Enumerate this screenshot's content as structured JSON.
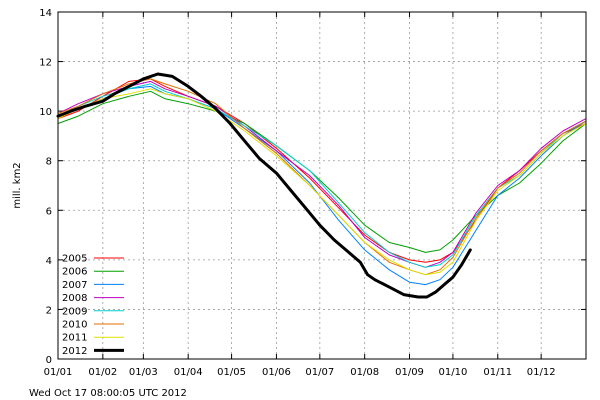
{
  "chart_data": {
    "type": "line",
    "xlabel": "",
    "ylabel": "mill. km2",
    "ylim": [
      0,
      14
    ],
    "xlim": [
      1,
      366
    ],
    "grid": true,
    "legend_position": "bottom-left",
    "footer": "Wed Oct 17 08:00:05 UTC 2012",
    "x_ticks": [
      {
        "label": "01/01",
        "day": 1
      },
      {
        "label": "01/02",
        "day": 32
      },
      {
        "label": "01/03",
        "day": 60
      },
      {
        "label": "01/04",
        "day": 91
      },
      {
        "label": "01/05",
        "day": 121
      },
      {
        "label": "01/06",
        "day": 152
      },
      {
        "label": "01/07",
        "day": 182
      },
      {
        "label": "01/08",
        "day": 213
      },
      {
        "label": "01/09",
        "day": 244
      },
      {
        "label": "01/10",
        "day": 274
      },
      {
        "label": "01/11",
        "day": 305
      },
      {
        "label": "01/12",
        "day": 335
      }
    ],
    "y_ticks": [
      0,
      2,
      4,
      6,
      8,
      10,
      12,
      14
    ],
    "series": [
      {
        "name": "2005",
        "color": "#ff0000",
        "width": 1,
        "points": [
          [
            1,
            9.7
          ],
          [
            15,
            10.0
          ],
          [
            32,
            10.6
          ],
          [
            50,
            11.2
          ],
          [
            65,
            11.3
          ],
          [
            75,
            11.0
          ],
          [
            91,
            10.6
          ],
          [
            110,
            10.2
          ],
          [
            130,
            9.5
          ],
          [
            152,
            8.5
          ],
          [
            175,
            7.3
          ],
          [
            195,
            6.1
          ],
          [
            213,
            5.0
          ],
          [
            230,
            4.3
          ],
          [
            244,
            4.0
          ],
          [
            255,
            3.9
          ],
          [
            265,
            4.0
          ],
          [
            274,
            4.3
          ],
          [
            290,
            5.6
          ],
          [
            305,
            6.9
          ],
          [
            320,
            7.6
          ],
          [
            335,
            8.4
          ],
          [
            350,
            9.1
          ],
          [
            366,
            9.5
          ]
        ]
      },
      {
        "name": "2006",
        "color": "#00a000",
        "width": 1,
        "points": [
          [
            1,
            9.5
          ],
          [
            15,
            9.8
          ],
          [
            32,
            10.3
          ],
          [
            50,
            10.6
          ],
          [
            65,
            10.8
          ],
          [
            75,
            10.5
          ],
          [
            91,
            10.3
          ],
          [
            110,
            10.0
          ],
          [
            130,
            9.5
          ],
          [
            152,
            8.6
          ],
          [
            175,
            7.6
          ],
          [
            195,
            6.5
          ],
          [
            213,
            5.4
          ],
          [
            230,
            4.7
          ],
          [
            244,
            4.5
          ],
          [
            255,
            4.3
          ],
          [
            265,
            4.4
          ],
          [
            274,
            4.8
          ],
          [
            290,
            5.8
          ],
          [
            305,
            6.6
          ],
          [
            320,
            7.1
          ],
          [
            335,
            7.9
          ],
          [
            350,
            8.8
          ],
          [
            366,
            9.5
          ]
        ]
      },
      {
        "name": "2007",
        "color": "#0080ff",
        "width": 1,
        "points": [
          [
            1,
            9.8
          ],
          [
            15,
            10.1
          ],
          [
            32,
            10.5
          ],
          [
            50,
            10.9
          ],
          [
            65,
            11.0
          ],
          [
            75,
            10.7
          ],
          [
            91,
            10.5
          ],
          [
            110,
            10.1
          ],
          [
            130,
            9.3
          ],
          [
            152,
            8.4
          ],
          [
            175,
            7.1
          ],
          [
            195,
            5.6
          ],
          [
            213,
            4.4
          ],
          [
            230,
            3.6
          ],
          [
            244,
            3.1
          ],
          [
            255,
            3.0
          ],
          [
            265,
            3.2
          ],
          [
            274,
            3.7
          ],
          [
            290,
            5.2
          ],
          [
            305,
            6.6
          ],
          [
            320,
            7.3
          ],
          [
            335,
            8.2
          ],
          [
            350,
            9.0
          ],
          [
            366,
            9.6
          ]
        ]
      },
      {
        "name": "2008",
        "color": "#c000c0",
        "width": 1,
        "points": [
          [
            1,
            9.9
          ],
          [
            15,
            10.3
          ],
          [
            32,
            10.7
          ],
          [
            50,
            11.0
          ],
          [
            65,
            11.2
          ],
          [
            75,
            10.9
          ],
          [
            91,
            10.6
          ],
          [
            110,
            10.2
          ],
          [
            130,
            9.4
          ],
          [
            152,
            8.4
          ],
          [
            175,
            7.4
          ],
          [
            195,
            6.2
          ],
          [
            213,
            4.9
          ],
          [
            230,
            4.2
          ],
          [
            244,
            3.9
          ],
          [
            255,
            3.7
          ],
          [
            265,
            3.9
          ],
          [
            274,
            4.3
          ],
          [
            290,
            5.9
          ],
          [
            305,
            7.0
          ],
          [
            320,
            7.6
          ],
          [
            335,
            8.5
          ],
          [
            350,
            9.2
          ],
          [
            366,
            9.7
          ]
        ]
      },
      {
        "name": "2009",
        "color": "#00d0d0",
        "width": 1,
        "points": [
          [
            1,
            9.8
          ],
          [
            15,
            10.2
          ],
          [
            32,
            10.6
          ],
          [
            50,
            10.9
          ],
          [
            65,
            11.1
          ],
          [
            75,
            10.8
          ],
          [
            91,
            10.5
          ],
          [
            110,
            10.1
          ],
          [
            130,
            9.4
          ],
          [
            152,
            8.6
          ],
          [
            175,
            7.6
          ],
          [
            195,
            6.3
          ],
          [
            213,
            5.1
          ],
          [
            230,
            4.3
          ],
          [
            244,
            3.9
          ],
          [
            255,
            3.7
          ],
          [
            265,
            3.8
          ],
          [
            274,
            4.2
          ],
          [
            290,
            5.8
          ],
          [
            305,
            6.9
          ],
          [
            320,
            7.4
          ],
          [
            335,
            8.3
          ],
          [
            350,
            9.1
          ],
          [
            366,
            9.6
          ]
        ]
      },
      {
        "name": "2010",
        "color": "#e07000",
        "width": 1,
        "points": [
          [
            1,
            9.9
          ],
          [
            15,
            10.2
          ],
          [
            32,
            10.7
          ],
          [
            50,
            11.1
          ],
          [
            65,
            11.3
          ],
          [
            75,
            11.1
          ],
          [
            91,
            10.8
          ],
          [
            110,
            10.3
          ],
          [
            130,
            9.3
          ],
          [
            152,
            8.3
          ],
          [
            175,
            7.0
          ],
          [
            195,
            5.8
          ],
          [
            213,
            4.7
          ],
          [
            230,
            3.9
          ],
          [
            244,
            3.6
          ],
          [
            255,
            3.4
          ],
          [
            265,
            3.6
          ],
          [
            274,
            4.1
          ],
          [
            290,
            5.7
          ],
          [
            305,
            6.9
          ],
          [
            320,
            7.5
          ],
          [
            335,
            8.4
          ],
          [
            350,
            9.1
          ],
          [
            366,
            9.6
          ]
        ]
      },
      {
        "name": "2011",
        "color": "#e0e000",
        "width": 1,
        "points": [
          [
            1,
            9.7
          ],
          [
            15,
            10.1
          ],
          [
            32,
            10.5
          ],
          [
            50,
            10.7
          ],
          [
            65,
            10.9
          ],
          [
            75,
            10.7
          ],
          [
            91,
            10.5
          ],
          [
            110,
            10.0
          ],
          [
            130,
            9.2
          ],
          [
            152,
            8.2
          ],
          [
            175,
            7.0
          ],
          [
            195,
            5.8
          ],
          [
            213,
            4.7
          ],
          [
            230,
            4.0
          ],
          [
            244,
            3.6
          ],
          [
            255,
            3.4
          ],
          [
            265,
            3.5
          ],
          [
            274,
            3.9
          ],
          [
            290,
            5.6
          ],
          [
            305,
            6.8
          ],
          [
            320,
            7.4
          ],
          [
            335,
            8.3
          ],
          [
            350,
            9.0
          ],
          [
            366,
            9.5
          ]
        ]
      },
      {
        "name": "2012",
        "color": "#000000",
        "width": 3,
        "points": [
          [
            1,
            9.8
          ],
          [
            10,
            10.0
          ],
          [
            20,
            10.2
          ],
          [
            32,
            10.4
          ],
          [
            40,
            10.7
          ],
          [
            50,
            11.0
          ],
          [
            60,
            11.3
          ],
          [
            70,
            11.5
          ],
          [
            80,
            11.4
          ],
          [
            91,
            11.0
          ],
          [
            100,
            10.6
          ],
          [
            110,
            10.1
          ],
          [
            120,
            9.5
          ],
          [
            130,
            8.8
          ],
          [
            140,
            8.1
          ],
          [
            152,
            7.5
          ],
          [
            162,
            6.8
          ],
          [
            172,
            6.1
          ],
          [
            182,
            5.4
          ],
          [
            192,
            4.8
          ],
          [
            202,
            4.3
          ],
          [
            210,
            3.9
          ],
          [
            215,
            3.4
          ],
          [
            220,
            3.2
          ],
          [
            230,
            2.9
          ],
          [
            240,
            2.6
          ],
          [
            250,
            2.5
          ],
          [
            256,
            2.5
          ],
          [
            262,
            2.7
          ],
          [
            268,
            3.0
          ],
          [
            274,
            3.3
          ],
          [
            280,
            3.8
          ],
          [
            286,
            4.4
          ]
        ]
      }
    ]
  }
}
